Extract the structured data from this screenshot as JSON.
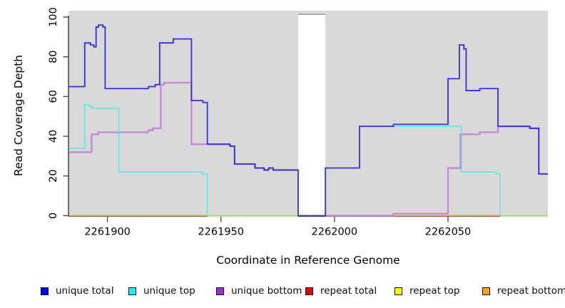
{
  "chart_data": {
    "type": "line",
    "subtype": "step-coverage",
    "title": "",
    "xlabel": "Coordinate in Reference Genome",
    "ylabel": "Read Coverage Depth",
    "xlim": [
      2261883,
      2262094
    ],
    "ylim": [
      0,
      100
    ],
    "background": "#d9d9d9",
    "grid": false,
    "axis_color": "#4d4d4d",
    "x_ticks": [
      {
        "value": 2261900,
        "label": "2261900"
      },
      {
        "value": 2261950,
        "label": "2261950"
      },
      {
        "value": 2262000,
        "label": "2262000"
      },
      {
        "value": 2262050,
        "label": "2262050"
      }
    ],
    "y_ticks": [
      {
        "value": 0,
        "label": "0"
      },
      {
        "value": 20,
        "label": "20"
      },
      {
        "value": 40,
        "label": "40"
      },
      {
        "value": 60,
        "label": "60"
      },
      {
        "value": 80,
        "label": "80"
      },
      {
        "value": 100,
        "label": "100"
      }
    ],
    "no_data_gap": {
      "x0": 2261984,
      "x1": 2261996,
      "fill": "#ffffff",
      "top_border": "#999999"
    },
    "series": [
      {
        "name": "repeat total",
        "color": "#c94d6d",
        "width": 1.5,
        "paths": [
          {
            "steps": [
              [
                2261996,
                0
              ]
            ],
            "end": 2262026
          }
        ]
      },
      {
        "name": "repeat top",
        "color": "#8fd98f",
        "underlay_color": "#e9e89b",
        "width": 1.5,
        "paths": [
          {
            "steps": [
              [
                2261944,
                0
              ]
            ],
            "end": 2261984
          },
          {
            "steps": [
              [
                2262073,
                0
              ]
            ],
            "end": 2262094
          }
        ]
      },
      {
        "name": "repeat bottom",
        "color": "#ff9f1c",
        "width": 1.8,
        "paths": [
          {
            "steps": [
              [
                2261883,
                0
              ]
            ],
            "end": 2261944
          },
          {
            "steps": [
              [
                2262026,
                0
              ]
            ],
            "end": 2262073
          }
        ]
      },
      {
        "name": "unique bottom",
        "color": "#c489d9",
        "width": 2.4,
        "paths": [
          {
            "steps": [
              [
                2261883,
                32
              ],
              [
                2261893,
                41
              ],
              [
                2261896,
                42
              ],
              [
                2261918,
                43
              ],
              [
                2261920,
                44
              ],
              [
                2261923.5,
                66
              ],
              [
                2261925,
                67
              ],
              [
                2261937,
                36
              ],
              [
                2261954,
                35
              ],
              [
                2261956,
                26
              ],
              [
                2261965,
                24
              ],
              [
                2261969,
                23
              ],
              [
                2261971,
                24
              ],
              [
                2261973,
                23
              ]
            ],
            "end": 2261984
          },
          {
            "steps": [
              [
                2261996,
                0
              ],
              [
                2262026,
                1
              ],
              [
                2262050,
                24
              ],
              [
                2262055.5,
                41
              ],
              [
                2262064,
                42
              ],
              [
                2262072,
                45
              ],
              [
                2262086,
                44
              ],
              [
                2262090,
                21
              ]
            ],
            "end": 2262094
          }
        ]
      },
      {
        "name": "unique top",
        "color": "#64e6e6",
        "width": 1.6,
        "paths": [
          {
            "steps": [
              [
                2261883,
                34
              ],
              [
                2261890,
                56
              ],
              [
                2261892,
                55
              ],
              [
                2261893.5,
                54
              ],
              [
                2261905,
                22
              ],
              [
                2261942,
                21
              ],
              [
                2261944,
                0
              ]
            ],
            "end": 2261944
          },
          {
            "steps": [
              [
                2262026,
                45
              ],
              [
                2262056,
                22
              ],
              [
                2262071,
                21
              ],
              [
                2262073,
                0
              ]
            ],
            "end": 2262073
          }
        ]
      },
      {
        "name": "unique total",
        "color": "#3232dd",
        "width": 1.8,
        "paths": [
          {
            "steps": [
              [
                2261883,
                65
              ],
              [
                2261890,
                87
              ],
              [
                2261892.5,
                86
              ],
              [
                2261894,
                85
              ],
              [
                2261895,
                95
              ],
              [
                2261896,
                96
              ],
              [
                2261898,
                95
              ],
              [
                2261899,
                64
              ],
              [
                2261918,
                65
              ],
              [
                2261921,
                66
              ],
              [
                2261923,
                87
              ],
              [
                2261929,
                89
              ],
              [
                2261937,
                58
              ],
              [
                2261942,
                57
              ],
              [
                2261944,
                36
              ],
              [
                2261954,
                35
              ],
              [
                2261956,
                26
              ],
              [
                2261965,
                24
              ],
              [
                2261969,
                23
              ],
              [
                2261971,
                24
              ],
              [
                2261973,
                23
              ],
              [
                2261984,
                0
              ],
              [
                2261996,
                24
              ],
              [
                2262011,
                45
              ],
              [
                2262026,
                46
              ],
              [
                2262050,
                69
              ],
              [
                2262055,
                86
              ],
              [
                2262057,
                84
              ],
              [
                2262058,
                63
              ],
              [
                2262064,
                64
              ],
              [
                2262072,
                45
              ],
              [
                2262086,
                44
              ],
              [
                2262090,
                21
              ]
            ],
            "end": 2262094
          }
        ]
      }
    ],
    "legend": [
      {
        "label": "unique total",
        "color": "#0000ee"
      },
      {
        "label": "unique top",
        "color": "#00ffff"
      },
      {
        "label": "unique bottom",
        "color": "#9a32cd"
      },
      {
        "label": "repeat total",
        "color": "#ee0000"
      },
      {
        "label": "repeat top",
        "color": "#ffff00"
      },
      {
        "label": "repeat bottom",
        "color": "#ffa500"
      }
    ],
    "legend_position": "bottom"
  }
}
